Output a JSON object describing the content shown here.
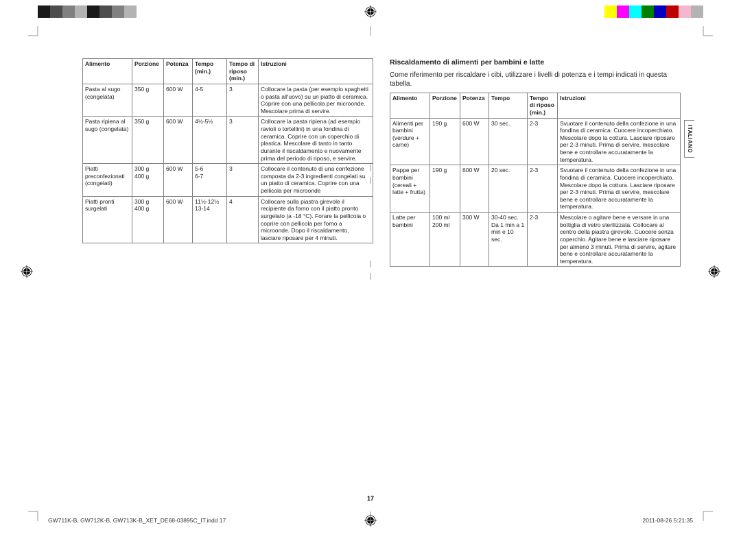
{
  "color_bar_left": [
    "#1a1a1a",
    "#4d4d4d",
    "#808080",
    "#b3b3b3",
    "#1a1a1a",
    "#4d4d4d",
    "#808080",
    "#b3b3b3"
  ],
  "color_bar_right": [
    "#ffff00",
    "#ff00ff",
    "#00ffff",
    "#008000",
    "#0000c0",
    "#c00000",
    "#f7b6cf",
    "#b3b3b3"
  ],
  "frame_color": "#7a7a7a",
  "left_table": {
    "headers": [
      "Alimento",
      "Porzione",
      "Potenza",
      "Tempo (min.)",
      "Tempo di riposo (min.)",
      "Istruzioni"
    ],
    "rows": [
      [
        "Pasta al sugo (congelata)",
        "350 g",
        "600 W",
        "4-5",
        "3",
        "Collocare la pasta (per esempio spaghetti o pasta all'uovo) su un piatto di ceramica. Coprire con una pellicola per microonde. Mescolare prima di servire."
      ],
      [
        "Pasta ripiena al sugo (congelata)",
        "350 g",
        "600 W",
        "4½-5½",
        "3",
        "Collocare la pasta ripiena (ad esempio ravioli o tortellini) in una fondina di ceramica. Coprire con un coperchio di plastica. Mescolare di tanto in tanto durante il riscaldamento e nuovamente prima del periodo di riposo, e servire."
      ],
      [
        "Piatti preconfezionati (congelati)",
        "300 g\n400 g",
        "600 W",
        "5-6\n6-7",
        "3",
        "Collocare il contenuto di una confezione composta da 2-3 ingredienti congelati su un piatto di ceramica. Coprire con una pellicola per microonde"
      ],
      [
        "Piatti pronti surgelati",
        "300 g\n400 g",
        "600 W",
        "11½-12½\n13-14",
        "4",
        "Collocare sulla piastra girevole il recipiente da forno con il piatto pronto surgelato (a -18 °C). Forare la pellicola o coprire con pellicola per forno a microonde. Dopo il riscaldamento, lasciare riposare per 4 minuti."
      ]
    ]
  },
  "right": {
    "heading": "Riscaldamento di alimenti per bambini e latte",
    "intro": "Come riferimento per riscaldare i cibi, utilizzare i livelli di potenza e i tempi indicati in questa tabella.",
    "headers": [
      "Alimento",
      "Porzione",
      "Potenza",
      "Tempo",
      "Tempo di riposo (min.)",
      "Istruzioni"
    ],
    "rows": [
      [
        "Alimenti per bambini (verdure + carne)",
        "190 g",
        "600 W",
        "30 sec.",
        "2-3",
        "Svuotare il contenuto della confezione in una fondina di ceramica. Cuocere incoperchiato. Mescolare dopo la cottura. Lasciare riposare per 2-3 minuti. Prima di servire, mescolare bene e controllare accuratamente la temperatura."
      ],
      [
        "Pappe per bambini (cereali + latte + frutta)",
        "190 g",
        "600 W",
        "20 sec.",
        "2-3",
        "Svuotare il contenuto della confezione in una fondina di ceramica. Cuocere incoperchiato. Mescolare dopo la cottura. Lasciare riposare per 2-3 minuti. Prima di servire, mescolare bene e controllare accuratamente la temperatura."
      ],
      [
        "Latte per bambini",
        "100 ml\n200 ml",
        "300 W",
        "30-40 sec.\nDa 1 min a 1 min e 10 sec.",
        "2-3",
        "Mescolare o agitare bene e versare in una bottiglia di vetro sterilizzata. Collocare al centro della piastra girevole. Cuocere senza coperchio. Agitare bene e lasciare riposare per almeno 3 minuti. Prima di servire, agitare bene e controllare accuratamente la temperatura."
      ]
    ]
  },
  "vtab_label": "ITALIANO",
  "page_number": "17",
  "footer_left": "GW711K-B, GW712K-B, GW713K-B_XET_DE68-03895C_IT.indd   17",
  "footer_right": "2011-08-26   5:21:35"
}
